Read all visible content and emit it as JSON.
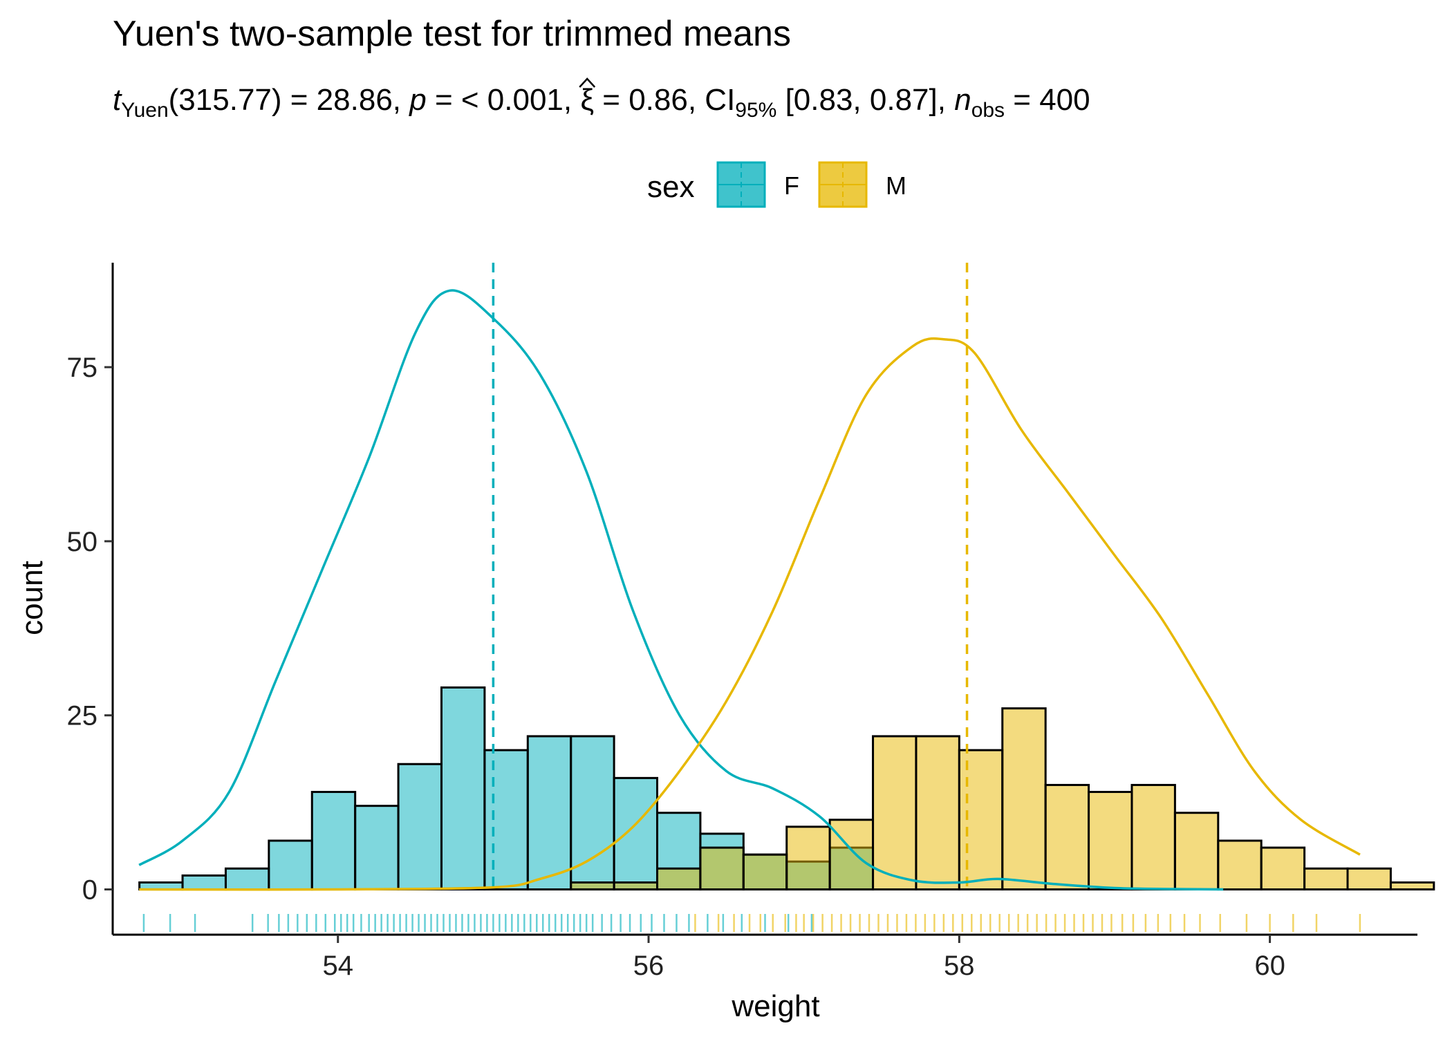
{
  "chart_data": {
    "type": "histogram",
    "title": "Yuen's two-sample test for trimmed means",
    "subtitle": {
      "t_symbol": "t",
      "t_sub": "Yuen",
      "df_part": "(315.77) = 28.86, ",
      "p_symbol": "p",
      "p_part": " = < 0.001, ",
      "xi_symbol": "ξ",
      "xi_part": " = 0.86, CI",
      "ci_sub": "95%",
      "ci_part": " [0.83, 0.87], ",
      "n_symbol": "n",
      "n_sub": "obs",
      "n_part": " = 400"
    },
    "xlabel": "weight",
    "ylabel": "count",
    "xlim": [
      52.55,
      60.95
    ],
    "ylim": [
      -6.5,
      90
    ],
    "xticks": [
      54,
      56,
      58,
      60
    ],
    "yticks": [
      0,
      25,
      50,
      75
    ],
    "bin_width": 0.2778,
    "bin_start": 52.722,
    "legend": {
      "title": "sex",
      "position": "top",
      "entries": [
        {
          "label": "F",
          "fill": "#00AFBB",
          "stroke": "#00AFBB"
        },
        {
          "label": "M",
          "fill": "#E7B800",
          "stroke": "#E7B800"
        }
      ]
    },
    "series": [
      {
        "name": "F",
        "color": "#00AFBB",
        "fill_opacity": 0.5,
        "counts": [
          1,
          2,
          3,
          7,
          14,
          12,
          18,
          29,
          20,
          22,
          22,
          16,
          11,
          8,
          5,
          4,
          6,
          0,
          0,
          0,
          0,
          0,
          0,
          0,
          0,
          0,
          0,
          0,
          0
        ],
        "mean_line": 55.0,
        "density_x": [
          52.72,
          53.0,
          53.3,
          53.6,
          53.9,
          54.2,
          54.5,
          54.72,
          55.0,
          55.3,
          55.6,
          55.9,
          56.2,
          56.5,
          56.8,
          57.1,
          57.4,
          57.7,
          58.0,
          58.25,
          58.6,
          59.0,
          59.4,
          59.7
        ],
        "density_y": [
          3.5,
          7,
          14,
          30,
          46,
          62,
          80,
          86,
          82,
          74,
          60,
          40,
          25,
          17,
          14.5,
          10.5,
          3.8,
          1.3,
          1.0,
          1.5,
          0.8,
          0.2,
          0.05,
          0.0
        ],
        "rug": [
          52.75,
          52.92,
          53.08,
          53.45,
          53.55,
          53.62,
          53.68,
          53.74,
          53.8,
          53.86,
          53.92,
          53.98,
          54.02,
          54.06,
          54.1,
          54.15,
          54.2,
          54.24,
          54.28,
          54.32,
          54.36,
          54.4,
          54.44,
          54.48,
          54.52,
          54.56,
          54.6,
          54.64,
          54.68,
          54.72,
          54.76,
          54.8,
          54.84,
          54.88,
          54.92,
          54.96,
          55.0,
          55.04,
          55.08,
          55.12,
          55.16,
          55.2,
          55.24,
          55.28,
          55.32,
          55.36,
          55.4,
          55.44,
          55.48,
          55.52,
          55.56,
          55.6,
          55.64,
          55.7,
          55.76,
          55.82,
          55.88,
          55.95,
          56.02,
          56.1,
          56.18,
          56.26,
          56.38,
          56.48,
          56.6,
          56.75,
          56.9,
          57.05
        ]
      },
      {
        "name": "M",
        "color": "#E7B800",
        "fill_opacity": 0.5,
        "counts": [
          0,
          0,
          0,
          0,
          0,
          0,
          0,
          0,
          0,
          0,
          1,
          1,
          3,
          6,
          5,
          9,
          10,
          22,
          22,
          20,
          26,
          15,
          14,
          15,
          11,
          7,
          6,
          3,
          3,
          1
        ],
        "mean_line": 58.05,
        "density_x": [
          52.72,
          54.0,
          55.0,
          55.3,
          55.6,
          55.9,
          56.2,
          56.5,
          56.8,
          57.1,
          57.4,
          57.7,
          57.9,
          58.1,
          58.4,
          58.7,
          59.0,
          59.3,
          59.6,
          59.9,
          60.2,
          60.58
        ],
        "density_y": [
          0.0,
          0.0,
          0.3,
          1.5,
          4,
          9,
          17,
          27,
          40,
          56,
          71,
          78,
          79,
          77,
          66,
          57,
          48,
          39,
          28,
          17,
          10,
          5
        ],
        "rug": [
          56.3,
          56.45,
          56.55,
          56.65,
          56.72,
          56.8,
          56.88,
          56.95,
          57.0,
          57.06,
          57.12,
          57.18,
          57.24,
          57.3,
          57.36,
          57.42,
          57.48,
          57.54,
          57.6,
          57.66,
          57.72,
          57.78,
          57.84,
          57.9,
          57.96,
          58.02,
          58.08,
          58.14,
          58.2,
          58.26,
          58.32,
          58.38,
          58.44,
          58.5,
          58.56,
          58.62,
          58.68,
          58.74,
          58.8,
          58.86,
          58.92,
          58.98,
          59.05,
          59.12,
          59.2,
          59.28,
          59.36,
          59.45,
          59.55,
          59.68,
          59.85,
          60.0,
          60.15,
          60.3,
          60.58
        ]
      }
    ]
  }
}
